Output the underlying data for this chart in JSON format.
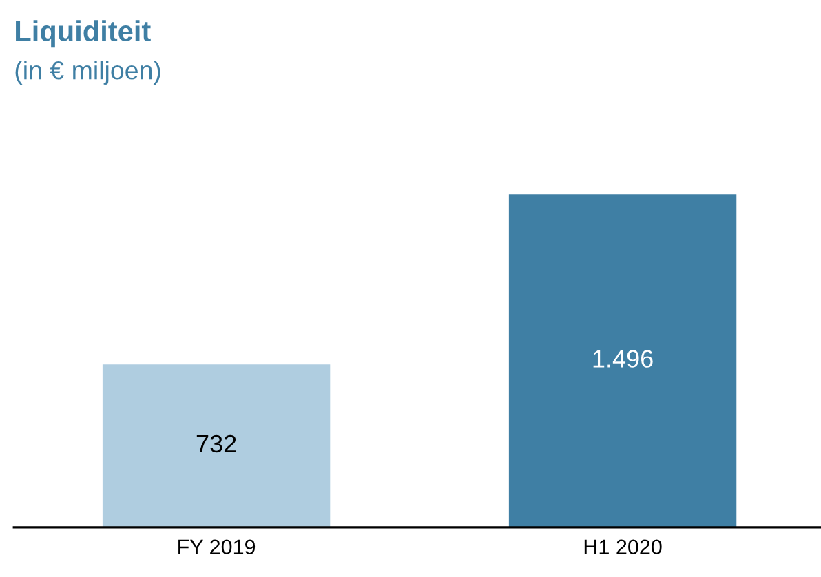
{
  "chart_data": {
    "type": "bar",
    "title": "Liquiditeit",
    "subtitle": "(in € miljoen)",
    "categories": [
      "FY 2019",
      "H1 2020"
    ],
    "values": [
      732,
      1496
    ],
    "colors": [
      "#afcde0",
      "#3f7fa4"
    ],
    "value_labels": [
      "732",
      "1.496"
    ],
    "grid": false,
    "legend": false,
    "tick_labels": "x"
  }
}
